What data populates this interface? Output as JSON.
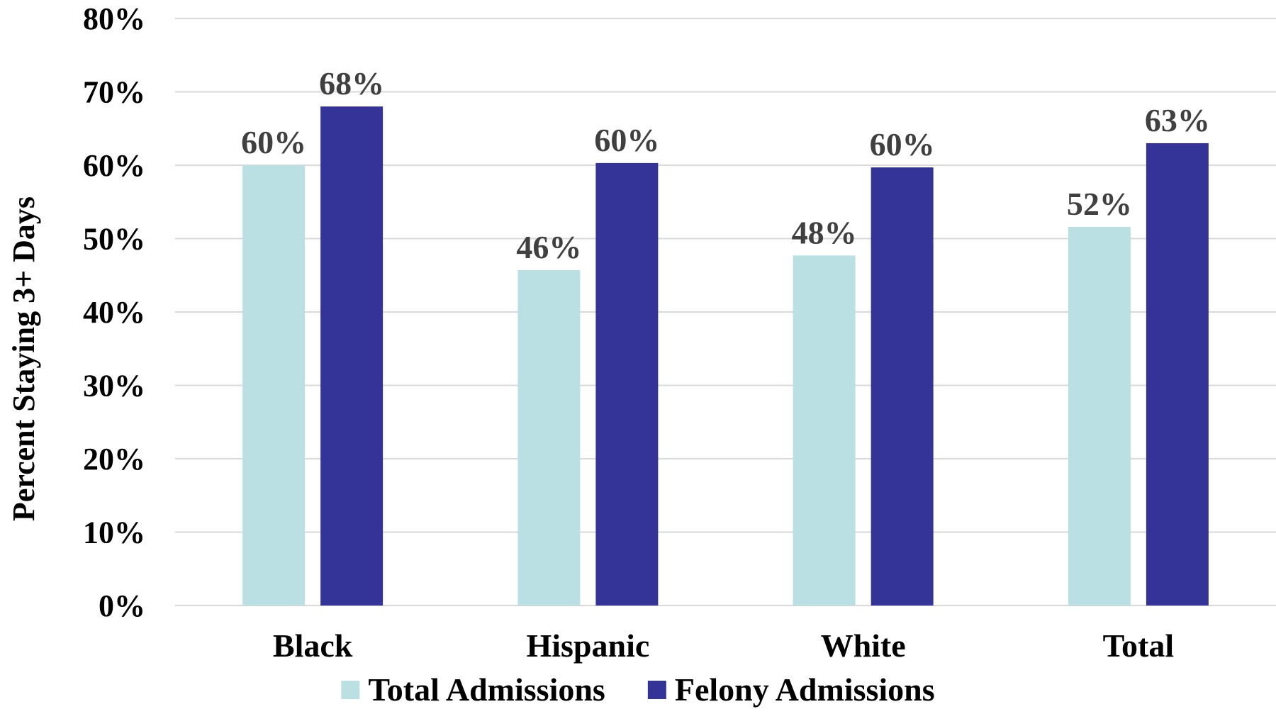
{
  "chart_data": {
    "type": "bar",
    "title": "",
    "xlabel": "",
    "ylabel": "Percent Staying 3+ Days",
    "ylim": [
      0,
      80
    ],
    "y_tick_step": 10,
    "y_tick_suffix": "%",
    "grid": true,
    "legend_position": "bottom",
    "categories": [
      "Black",
      "Hispanic",
      "White",
      "Total"
    ],
    "series": [
      {
        "name": "Total Admissions",
        "color": "#bae0e3",
        "values": [
          60,
          45.7,
          47.7,
          51.6
        ],
        "labels": [
          "60%",
          "46%",
          "48%",
          "52%"
        ]
      },
      {
        "name": "Felony Admissions",
        "color": "#343498",
        "values": [
          68,
          60.3,
          59.7,
          63
        ],
        "labels": [
          "68%",
          "60%",
          "60%",
          "63%"
        ]
      }
    ]
  }
}
